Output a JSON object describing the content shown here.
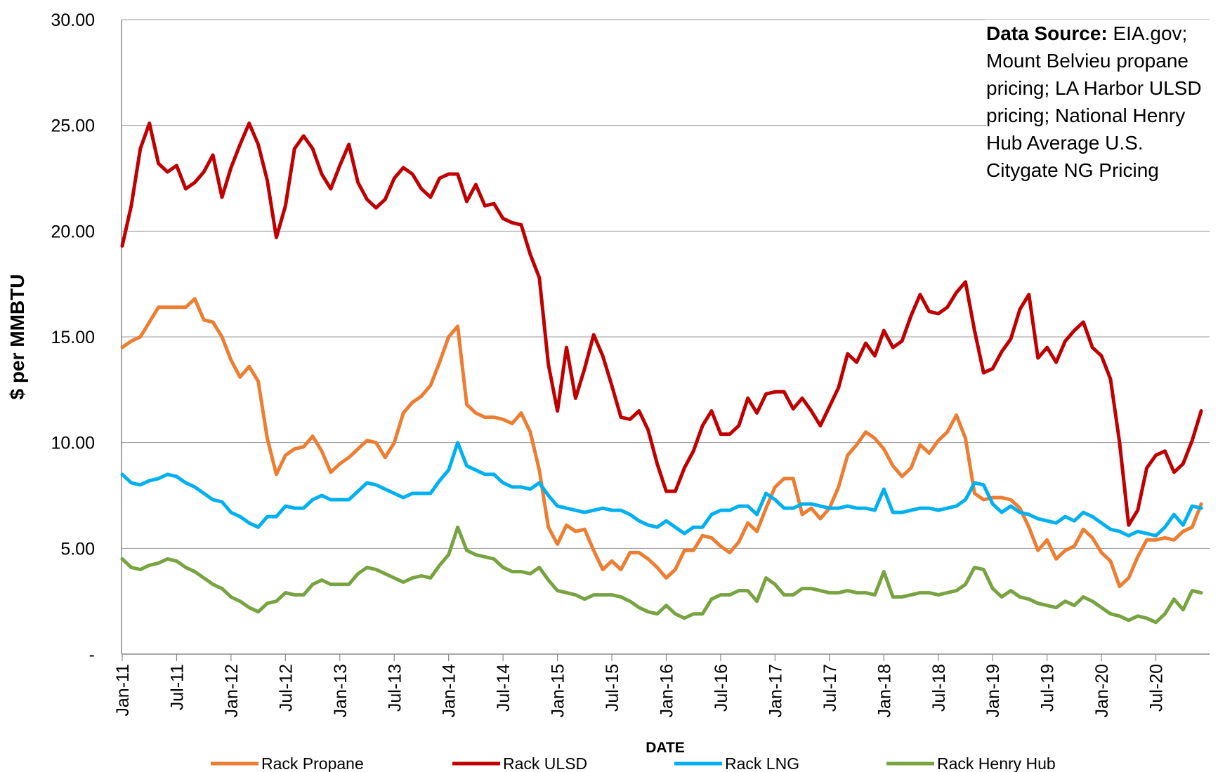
{
  "chart_data": {
    "type": "line",
    "title": "",
    "xlabel": "DATE",
    "ylabel": "$ per MMBTU",
    "ylim": [
      0,
      30
    ],
    "y_ticks": [
      "-",
      "5.00",
      "10.00",
      "15.00",
      "20.00",
      "25.00",
      "30.00"
    ],
    "x_tick_labels": [
      "Jan-11",
      "Jul-11",
      "Jan-12",
      "Jul-12",
      "Jan-13",
      "Jul-13",
      "Jan-14",
      "Jul-14",
      "Jan-15",
      "Jul-15",
      "Jan-16",
      "Jul-16",
      "Jan-17",
      "Jul-17",
      "Jan-18",
      "Jul-18",
      "Jan-19",
      "Jul-19",
      "Jan-20",
      "Jul-20"
    ],
    "annotation": {
      "bold": "Data Source:",
      "text": "EIA.gov; Mount Belvieu propane pricing; LA Harbor ULSD pricing; National Henry Hub Average U.S. Citygate NG Pricing"
    },
    "series": [
      {
        "name": "Rack Propane",
        "color": "#ED7D31",
        "values": [
          14.5,
          14.8,
          15.0,
          15.7,
          16.4,
          16.4,
          16.4,
          16.4,
          16.8,
          15.8,
          15.7,
          15.0,
          13.9,
          13.1,
          13.6,
          12.9,
          10.2,
          8.5,
          9.4,
          9.7,
          9.8,
          10.3,
          9.6,
          8.6,
          9.0,
          9.3,
          9.7,
          10.1,
          10.0,
          9.3,
          10.0,
          11.4,
          11.9,
          12.2,
          12.7,
          13.8,
          15.0,
          15.5,
          11.8,
          11.4,
          11.2,
          11.2,
          11.1,
          10.9,
          11.4,
          10.5,
          8.7,
          6.0,
          5.2,
          6.1,
          5.8,
          5.9,
          4.9,
          4.0,
          4.4,
          4.0,
          4.8,
          4.8,
          4.5,
          4.1,
          3.6,
          4.0,
          4.9,
          4.9,
          5.6,
          5.5,
          5.1,
          4.8,
          5.3,
          6.2,
          5.8,
          6.9,
          7.9,
          8.3,
          8.3,
          6.6,
          6.9,
          6.4,
          6.9,
          7.9,
          9.4,
          9.9,
          10.5,
          10.2,
          9.7,
          8.9,
          8.4,
          8.8,
          9.9,
          9.5,
          10.1,
          10.5,
          11.3,
          10.2,
          7.6,
          7.3,
          7.4,
          7.4,
          7.3,
          6.9,
          6.0,
          4.9,
          5.4,
          4.5,
          4.9,
          5.1,
          5.9,
          5.5,
          4.8,
          4.4,
          3.2,
          3.6,
          4.6,
          5.4,
          5.4,
          5.5,
          5.4,
          5.8,
          6.0,
          7.1
        ]
      },
      {
        "name": "Rack ULSD",
        "color": "#C00000",
        "values": [
          19.3,
          21.2,
          23.9,
          25.1,
          23.2,
          22.8,
          23.1,
          22.0,
          22.3,
          22.8,
          23.6,
          21.6,
          23.0,
          24.1,
          25.1,
          24.1,
          22.4,
          19.7,
          21.2,
          23.9,
          24.5,
          23.9,
          22.7,
          22.0,
          23.1,
          24.1,
          22.3,
          21.5,
          21.1,
          21.5,
          22.5,
          23.0,
          22.7,
          22.0,
          21.6,
          22.5,
          22.7,
          22.7,
          21.4,
          22.2,
          21.2,
          21.3,
          20.6,
          20.4,
          20.3,
          18.9,
          17.8,
          13.7,
          11.5,
          14.5,
          12.1,
          13.5,
          15.1,
          14.1,
          12.7,
          11.2,
          11.1,
          11.5,
          10.6,
          9.0,
          7.7,
          7.7,
          8.8,
          9.6,
          10.8,
          11.5,
          10.4,
          10.4,
          10.8,
          12.1,
          11.4,
          12.3,
          12.4,
          12.4,
          11.6,
          12.1,
          11.5,
          10.8,
          11.7,
          12.6,
          14.2,
          13.8,
          14.7,
          14.1,
          15.3,
          14.5,
          14.8,
          16.0,
          17.0,
          16.2,
          16.1,
          16.4,
          17.1,
          17.6,
          15.3,
          13.3,
          13.5,
          14.3,
          14.9,
          16.3,
          17.0,
          14.0,
          14.5,
          13.8,
          14.8,
          15.3,
          15.7,
          14.5,
          14.1,
          13.0,
          10.0,
          6.1,
          6.8,
          8.8,
          9.4,
          9.6,
          8.6,
          9.0,
          10.1,
          11.5
        ]
      },
      {
        "name": "Rack LNG",
        "color": "#00B0F0",
        "values": [
          8.5,
          8.1,
          8.0,
          8.2,
          8.3,
          8.5,
          8.4,
          8.1,
          7.9,
          7.6,
          7.3,
          7.2,
          6.7,
          6.5,
          6.2,
          6.0,
          6.5,
          6.5,
          7.0,
          6.9,
          6.9,
          7.3,
          7.5,
          7.3,
          7.3,
          7.3,
          7.7,
          8.1,
          8.0,
          7.8,
          7.6,
          7.4,
          7.6,
          7.6,
          7.6,
          8.2,
          8.7,
          10.0,
          8.9,
          8.7,
          8.5,
          8.5,
          8.1,
          7.9,
          7.9,
          7.8,
          8.1,
          7.5,
          7.0,
          6.9,
          6.8,
          6.7,
          6.8,
          6.9,
          6.8,
          6.8,
          6.6,
          6.3,
          6.1,
          6.0,
          6.3,
          6.0,
          5.7,
          6.0,
          6.0,
          6.6,
          6.8,
          6.8,
          7.0,
          7.0,
          6.6,
          7.6,
          7.3,
          6.9,
          6.9,
          7.1,
          7.1,
          7.0,
          6.9,
          6.9,
          7.0,
          6.9,
          6.9,
          6.8,
          7.8,
          6.7,
          6.7,
          6.8,
          6.9,
          6.9,
          6.8,
          6.9,
          7.0,
          7.3,
          8.1,
          8.0,
          7.1,
          6.7,
          7.0,
          6.7,
          6.6,
          6.4,
          6.3,
          6.2,
          6.5,
          6.3,
          6.7,
          6.5,
          6.2,
          5.9,
          5.8,
          5.6,
          5.8,
          5.7,
          5.6,
          6.0,
          6.6,
          6.1,
          7.0,
          6.9
        ]
      },
      {
        "name": "Rack Henry Hub",
        "color": "#77A340",
        "values": [
          4.5,
          4.1,
          4.0,
          4.2,
          4.3,
          4.5,
          4.4,
          4.1,
          3.9,
          3.6,
          3.3,
          3.1,
          2.7,
          2.5,
          2.2,
          2.0,
          2.4,
          2.5,
          2.9,
          2.8,
          2.8,
          3.3,
          3.5,
          3.3,
          3.3,
          3.3,
          3.8,
          4.1,
          4.0,
          3.8,
          3.6,
          3.4,
          3.6,
          3.7,
          3.6,
          4.2,
          4.7,
          6.0,
          4.9,
          4.7,
          4.6,
          4.5,
          4.1,
          3.9,
          3.9,
          3.8,
          4.1,
          3.5,
          3.0,
          2.9,
          2.8,
          2.6,
          2.8,
          2.8,
          2.8,
          2.7,
          2.5,
          2.2,
          2.0,
          1.9,
          2.3,
          1.9,
          1.7,
          1.9,
          1.9,
          2.6,
          2.8,
          2.8,
          3.0,
          3.0,
          2.5,
          3.6,
          3.3,
          2.8,
          2.8,
          3.1,
          3.1,
          3.0,
          2.9,
          2.9,
          3.0,
          2.9,
          2.9,
          2.8,
          3.9,
          2.7,
          2.7,
          2.8,
          2.9,
          2.9,
          2.8,
          2.9,
          3.0,
          3.3,
          4.1,
          4.0,
          3.1,
          2.7,
          3.0,
          2.7,
          2.6,
          2.4,
          2.3,
          2.2,
          2.5,
          2.3,
          2.7,
          2.5,
          2.2,
          1.9,
          1.8,
          1.6,
          1.8,
          1.7,
          1.5,
          1.9,
          2.6,
          2.1,
          3.0,
          2.9
        ]
      }
    ]
  }
}
